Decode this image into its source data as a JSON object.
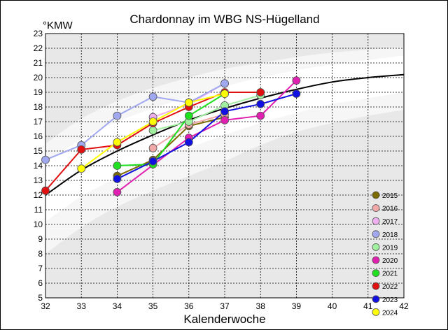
{
  "chart_data": {
    "type": "line",
    "title": "Chardonnay im WBG NS-Hügelland",
    "ylabel": "°KMW",
    "xlabel": "Kalenderwoche",
    "xlim": [
      32,
      42
    ],
    "ylim": [
      5,
      23
    ],
    "x_ticks": [
      "32",
      "33",
      "34",
      "35",
      "36",
      "37",
      "38",
      "39",
      "40",
      "41",
      "42"
    ],
    "y_ticks": [
      "5",
      "6",
      "7",
      "8",
      "9",
      "10",
      "11",
      "12",
      "13",
      "14",
      "15",
      "16",
      "17",
      "18",
      "19",
      "20",
      "21",
      "22",
      "23"
    ],
    "grid": true,
    "legend_position": "bottom-right",
    "band_outer": {
      "x": [
        32,
        33,
        34,
        35,
        36,
        37,
        38,
        39,
        40,
        41,
        42
      ],
      "upper": [
        15.5,
        17.2,
        18.4,
        19.3,
        20.0,
        20.6,
        21.0,
        21.4,
        21.7,
        21.9,
        22.1
      ],
      "lower": [
        8.0,
        9.8,
        11.2,
        12.3,
        13.3,
        14.3,
        15.4,
        16.3,
        16.9,
        17.4,
        17.8
      ]
    },
    "band_inner": {
      "x": [
        32,
        33,
        34,
        35,
        36,
        37,
        38,
        39,
        40,
        41,
        42
      ],
      "upper": [
        14.2,
        15.8,
        17.0,
        17.9,
        18.7,
        19.4,
        20.0,
        20.5,
        20.9,
        21.2,
        21.5
      ],
      "lower": [
        10.2,
        11.9,
        13.2,
        14.3,
        15.2,
        16.1,
        16.9,
        17.6,
        18.2,
        18.6,
        19.0
      ]
    },
    "mean_curve": {
      "x": [
        32,
        33,
        34,
        35,
        36,
        37,
        38,
        39,
        40,
        41,
        42
      ],
      "y": [
        12.0,
        13.7,
        15.0,
        16.1,
        17.1,
        17.9,
        18.6,
        19.2,
        19.7,
        20.0,
        20.2
      ]
    },
    "series": [
      {
        "name": "2015",
        "color": "#7a6a00",
        "x": [
          34,
          35,
          36,
          37
        ],
        "y": [
          13.3,
          14.4,
          16.7,
          17.3
        ]
      },
      {
        "name": "2016",
        "color": "#f0a8a8",
        "x": [
          35,
          36,
          37
        ],
        "y": [
          15.2,
          16.8,
          17.5
        ]
      },
      {
        "name": "2017",
        "color": "#f0b0f0",
        "x": [
          35,
          36,
          37
        ],
        "y": [
          17.3,
          18.2,
          19.6
        ]
      },
      {
        "name": "2018",
        "color": "#a0a8f0",
        "x": [
          32,
          33,
          34,
          35,
          36,
          37
        ],
        "y": [
          14.4,
          15.4,
          17.4,
          18.7,
          18.3,
          19.6
        ]
      },
      {
        "name": "2019",
        "color": "#a0f0a0",
        "x": [
          35,
          36,
          37,
          38
        ],
        "y": [
          16.4,
          17.0,
          18.1,
          18.8
        ]
      },
      {
        "name": "2020",
        "color": "#e020b0",
        "x": [
          34,
          36,
          37,
          38,
          39
        ],
        "y": [
          12.2,
          15.9,
          17.1,
          17.4,
          19.8
        ]
      },
      {
        "name": "2021",
        "color": "#20e020",
        "x": [
          34,
          35,
          36,
          37
        ],
        "y": [
          14.0,
          14.1,
          17.4,
          18.9
        ]
      },
      {
        "name": "2022",
        "color": "#e01010",
        "x": [
          32,
          33,
          34,
          35,
          36,
          37,
          38
        ],
        "y": [
          12.3,
          15.1,
          15.4,
          16.9,
          18.0,
          19.0,
          19.0
        ]
      },
      {
        "name": "2023",
        "color": "#1010e0",
        "x": [
          34,
          35,
          36,
          37,
          38,
          39
        ],
        "y": [
          13.1,
          14.3,
          15.6,
          17.7,
          18.2,
          18.9
        ]
      },
      {
        "name": "2024",
        "color": "#ffff00",
        "x": [
          33,
          34,
          35,
          36,
          37
        ],
        "y": [
          13.8,
          15.6,
          17.0,
          18.3,
          18.9
        ]
      }
    ]
  }
}
